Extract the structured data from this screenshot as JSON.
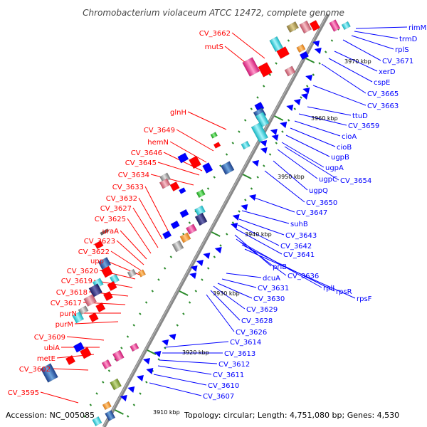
{
  "title": "Chromobacterium violaceum ATCC 12472, complete genome",
  "footer": {
    "accession": "Accession: NC_005085",
    "summary": "Topology: circular; Length: 4,751,080 bp; Genes: 4,530"
  },
  "colors": {
    "forward": "#ff0000",
    "reverse": "#0000ff",
    "backbone": "#888888",
    "ticks": "#2a8a2a"
  },
  "position_labels": [
    "3970 kbp",
    "3960 kbp",
    "3950 kbp",
    "3940 kbp",
    "3930 kbp",
    "3920 kbp",
    "3910 kbp"
  ],
  "left_labels": [
    "CV_3662",
    "mutS",
    "glnH",
    "CV_3649",
    "hemN",
    "CV_3646",
    "CV_3645",
    "CV_3634",
    "CV_3633",
    "CV_3632",
    "CV_3627",
    "CV_3625",
    "uraA",
    "CV_3623",
    "CV_3622",
    "upp",
    "CV_3620",
    "CV_3619",
    "CV_3618",
    "CV_3617",
    "purN",
    "purM",
    "CV_3609",
    "ubiA",
    "metE",
    "CV_3602",
    "CV_3595"
  ],
  "right_labels": [
    "rimM",
    "trmD",
    "rplS",
    "CV_3671",
    "xerD",
    "cspE",
    "CV_3665",
    "CV_3663",
    "ttuD",
    "CV_3659",
    "cioA",
    "cioB",
    "ugpB",
    "ugpA",
    "ugpC",
    "CV_3654",
    "ugpQ",
    "CV_3650",
    "CV_3647",
    "suhB",
    "CV_3643",
    "CV_3642",
    "CV_3641",
    "priB",
    "CV_3636",
    "rplI",
    "rpsR",
    "rpsF",
    "dcuA",
    "CV_3631",
    "CV_3630",
    "CV_3629",
    "CV_3628",
    "CV_3626",
    "CV_3614",
    "CV_3613",
    "CV_3612",
    "CV_3611",
    "CV_3610",
    "CV_3607"
  ]
}
